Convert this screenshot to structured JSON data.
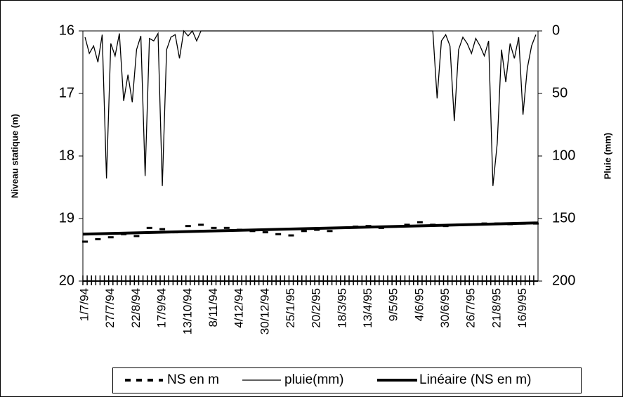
{
  "chart_data": {
    "type": "line",
    "y_title": "Niveau statique (m)",
    "y2_title": "Pluie (mm)",
    "categories": [
      "1/7/94",
      null,
      null,
      null,
      null,
      null,
      "27/7/94",
      null,
      null,
      null,
      null,
      null,
      "22/8/94",
      null,
      null,
      null,
      null,
      null,
      "17/9/94",
      null,
      null,
      null,
      null,
      null,
      "13/10/94",
      null,
      null,
      null,
      null,
      null,
      "8/11/94",
      null,
      null,
      null,
      null,
      null,
      "4/12/94",
      null,
      null,
      null,
      null,
      null,
      "30/12/94",
      null,
      null,
      null,
      null,
      null,
      "25/1/95",
      null,
      null,
      null,
      null,
      null,
      "20/2/95",
      null,
      null,
      null,
      null,
      null,
      "18/3/95",
      null,
      null,
      null,
      null,
      null,
      "13/4/95",
      null,
      null,
      null,
      null,
      null,
      "9/5/95",
      null,
      null,
      null,
      null,
      null,
      "4/6/95",
      null,
      null,
      null,
      null,
      null,
      "30/6/95",
      null,
      null,
      null,
      null,
      null,
      "26/7/95",
      null,
      null,
      null,
      null,
      null,
      "21/8/95",
      null,
      null,
      null,
      null,
      null,
      "16/9/95",
      null,
      null,
      null
    ],
    "ylim": [
      16,
      20
    ],
    "yticks": [
      16,
      17,
      18,
      19,
      20
    ],
    "y_inverted": true,
    "y2lim": [
      0,
      200
    ],
    "y2ticks": [
      0,
      50,
      100,
      150,
      200
    ],
    "y2_inverted": true,
    "series": [
      {
        "name": "NS en m",
        "color": "#000000",
        "style": "marker",
        "values": [
          19.37,
          null,
          null,
          19.33,
          null,
          null,
          19.3,
          null,
          null,
          19.25,
          null,
          null,
          19.28,
          null,
          null,
          19.15,
          null,
          null,
          19.17,
          null,
          null,
          19.22,
          null,
          null,
          19.12,
          null,
          null,
          19.1,
          null,
          null,
          19.15,
          null,
          null,
          19.15,
          null,
          null,
          19.18,
          null,
          null,
          19.2,
          null,
          null,
          19.22,
          null,
          null,
          19.25,
          null,
          null,
          19.27,
          null,
          null,
          19.2,
          null,
          null,
          19.18,
          null,
          null,
          19.2,
          null,
          null,
          19.15,
          null,
          null,
          19.13,
          null,
          null,
          19.12,
          null,
          null,
          19.15,
          null,
          null,
          19.13,
          null,
          null,
          19.1,
          null,
          null,
          19.06,
          null,
          null,
          19.1,
          null,
          null,
          19.12,
          null,
          null,
          19.1,
          null,
          null,
          19.1,
          null,
          null,
          19.08,
          null,
          null,
          19.08,
          null,
          null,
          19.09,
          null,
          null,
          19.08,
          null,
          null,
          19.08
        ]
      },
      {
        "name": "pluie(mm)",
        "color": "#000000",
        "style": "line",
        "axis": "y2",
        "values": [
          5,
          18,
          12,
          25,
          3,
          118,
          10,
          20,
          2,
          56,
          35,
          57,
          15,
          4,
          116,
          6,
          8,
          2,
          124,
          15,
          5,
          3,
          22,
          0,
          4,
          0,
          8,
          0,
          0,
          0,
          0,
          0,
          0,
          0,
          0,
          0,
          0,
          0,
          0,
          0,
          0,
          0,
          0,
          0,
          0,
          0,
          0,
          0,
          0,
          0,
          0,
          0,
          0,
          0,
          0,
          0,
          0,
          0,
          0,
          0,
          0,
          0,
          0,
          0,
          0,
          0,
          0,
          0,
          0,
          0,
          0,
          0,
          0,
          0,
          0,
          0,
          0,
          0,
          0,
          0,
          0,
          0,
          54,
          8,
          3,
          12,
          72,
          15,
          5,
          10,
          18,
          6,
          12,
          20,
          8,
          124,
          90,
          15,
          41,
          10,
          22,
          5,
          67,
          30,
          12,
          3
        ]
      }
    ],
    "trendline": {
      "name": "Linéaire (NS en m)",
      "color": "#000000",
      "values": [
        19.25,
        19.07
      ]
    }
  }
}
